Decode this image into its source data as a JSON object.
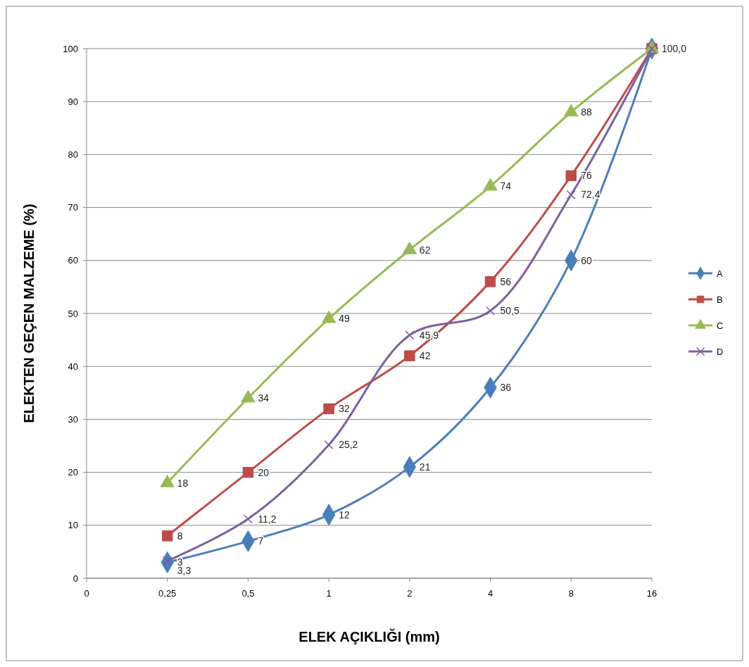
{
  "chart_data": {
    "type": "line",
    "xlabel": "ELEK AÇIKLIĞI (mm)",
    "ylabel": "ELEKTEN GEÇEN MALZEME (%)",
    "categories": [
      "0",
      "0,25",
      "0,5",
      "1",
      "2",
      "4",
      "8",
      "16"
    ],
    "series": [
      {
        "name": "A",
        "color": "#4a7ebb",
        "marker": "diamond",
        "values": [
          null,
          3,
          7,
          12,
          21,
          36,
          60,
          100
        ],
        "value_labels": [
          null,
          "3",
          "7",
          "12",
          "21",
          "36",
          "60",
          null
        ]
      },
      {
        "name": "B",
        "color": "#be4b48",
        "marker": "square",
        "values": [
          null,
          8,
          20,
          32,
          42,
          56,
          76,
          100
        ],
        "value_labels": [
          null,
          "8",
          "20",
          "32",
          "42",
          "56",
          "76",
          null
        ]
      },
      {
        "name": "C",
        "color": "#98b954",
        "marker": "triangle",
        "values": [
          null,
          18,
          34,
          49,
          62,
          74,
          88,
          100
        ],
        "value_labels": [
          null,
          "18",
          "34",
          "49",
          "62",
          "74",
          "88",
          null
        ]
      },
      {
        "name": "D",
        "color": "#7d60a0",
        "marker": "cross",
        "values": [
          null,
          3.3,
          11.2,
          25.2,
          45.9,
          50.5,
          72.4,
          100
        ],
        "value_labels": [
          null,
          "3,3",
          "11,2",
          "25,2",
          "45,9",
          "50,5",
          "72,4",
          "100,0"
        ]
      }
    ],
    "ylim": [
      0,
      100
    ],
    "yticks": [
      0,
      10,
      20,
      30,
      40,
      50,
      60,
      70,
      80,
      90,
      100
    ],
    "grid": "y",
    "legend": "right"
  }
}
